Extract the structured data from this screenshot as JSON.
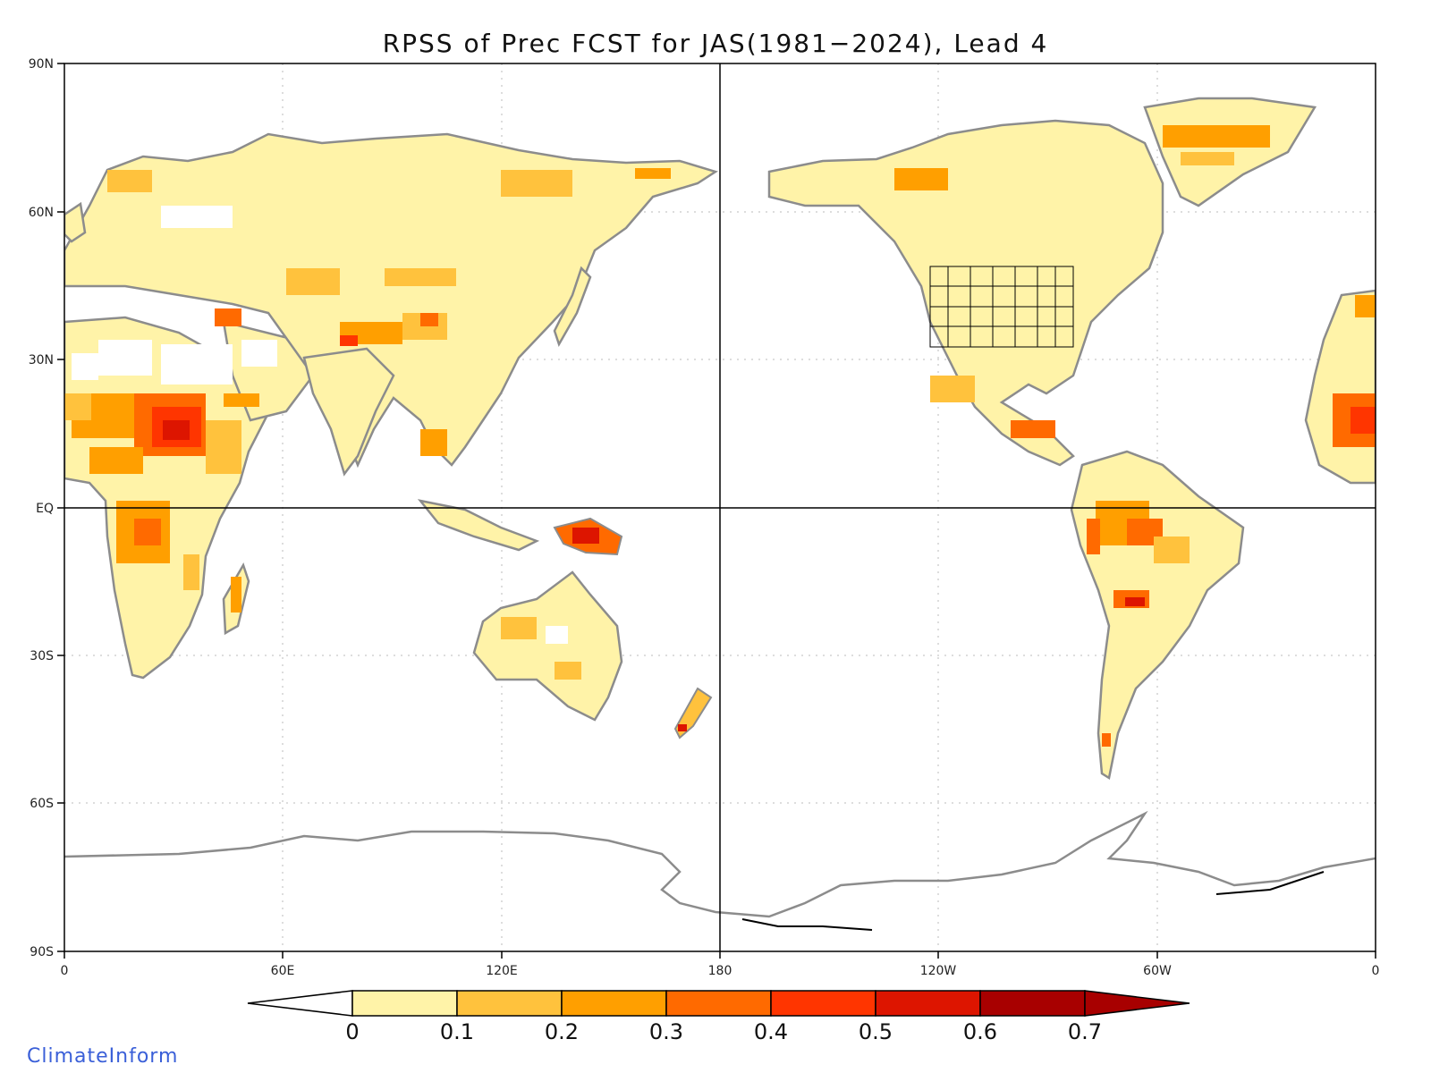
{
  "title": "RPSS of Prec FCST for JAS(1981−2024), Lead 4",
  "credit": "ClimateInform",
  "axes": {
    "lat_ticks": [
      "90N",
      "60N",
      "30N",
      "EQ",
      "30S",
      "60S",
      "90S"
    ],
    "lon_ticks": [
      "0",
      "60E",
      "120E",
      "180",
      "120W",
      "60W",
      "0"
    ]
  },
  "colorbar": {
    "tick_labels": [
      "0",
      "0.1",
      "0.2",
      "0.3",
      "0.4",
      "0.5",
      "0.6",
      "0.7"
    ],
    "colors": [
      "#ffffff",
      "#fff3a8",
      "#ffc23d",
      "#ff9f00",
      "#ff6a00",
      "#ff3500",
      "#dd1500",
      "#a80000"
    ]
  },
  "colors": {
    "coastline": "#8c8c8c",
    "lakes": "#000000",
    "grid": "#bbbbbb",
    "credit": "#3a5fd8"
  }
}
